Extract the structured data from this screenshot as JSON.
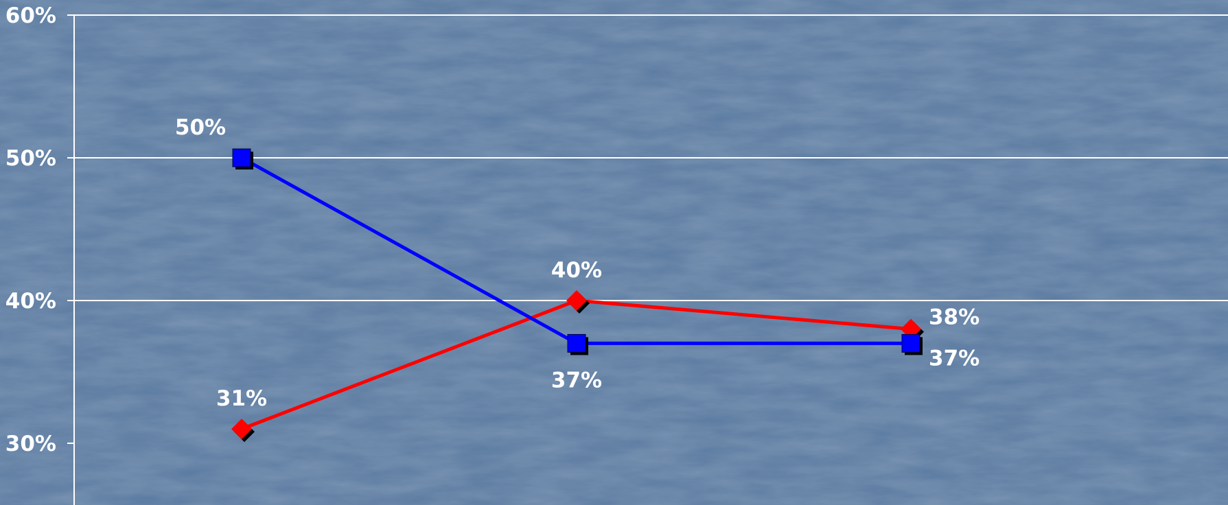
{
  "chart_data": {
    "type": "line",
    "categories": [
      "",
      "",
      ""
    ],
    "y_ticks": [
      {
        "value": 30,
        "label": "30%"
      },
      {
        "value": 40,
        "label": "40%"
      },
      {
        "value": 50,
        "label": "50%"
      },
      {
        "value": 60,
        "label": "60%"
      }
    ],
    "ylim": [
      30,
      60
    ],
    "grid": true,
    "series": [
      {
        "color": "#ff0000",
        "marker": "diamond",
        "values": [
          31,
          40,
          38
        ],
        "labels": [
          "31%",
          "40%",
          "38%"
        ],
        "label_positions": [
          "above",
          "above",
          "right-above"
        ]
      },
      {
        "color": "#0000ff",
        "marker": "square",
        "values": [
          50,
          37,
          37
        ],
        "labels": [
          "50%",
          "37%",
          "37%"
        ],
        "label_positions": [
          "above-left",
          "below",
          "right-below"
        ]
      }
    ],
    "colors": {
      "background": "#5a7aa0",
      "gridline": "#ffffff",
      "text": "#ffffff"
    }
  }
}
